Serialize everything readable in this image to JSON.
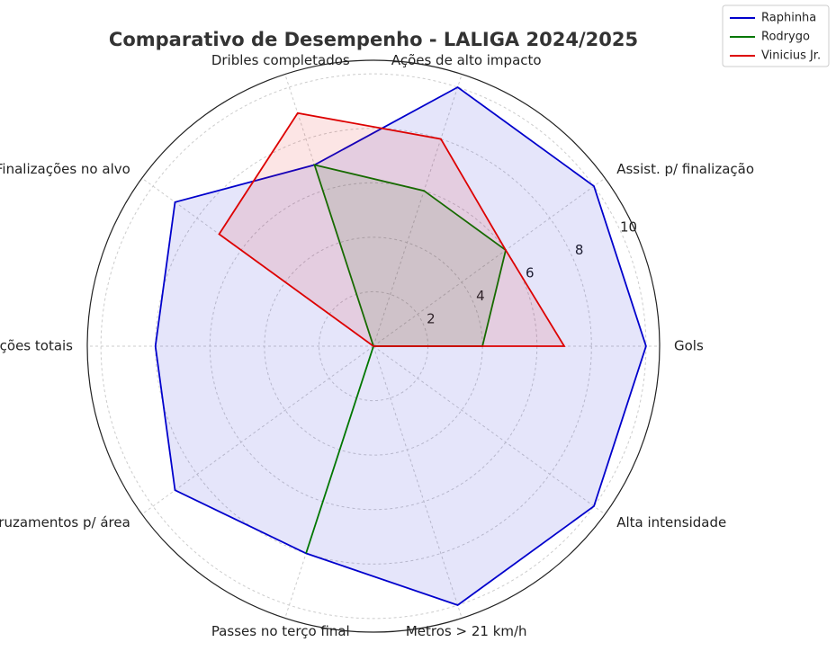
{
  "chart_data": {
    "type": "radar",
    "title": "Comparativo de Desempenho - LALIGA 2024/2025",
    "categories": [
      "Gols",
      "Assist. p/ finalização",
      "Ações de alto impacto",
      "Dribles completados",
      "Finalizações no alvo",
      "Finalizações totais",
      "Cruzamentos p/ área",
      "Passes no terço final",
      "Metros > 21 km/h",
      "Alta intensidade"
    ],
    "series": [
      {
        "name": "Raphinha",
        "color": "#0000cc",
        "values": [
          10,
          10,
          10,
          7,
          9,
          8,
          9,
          8,
          10,
          10
        ]
      },
      {
        "name": "Rodrygo",
        "color": "#007700",
        "values": [
          4,
          6,
          6,
          7,
          0,
          0,
          0,
          8,
          0,
          0
        ]
      },
      {
        "name": "Vinicius Jr.",
        "color": "#dd0000",
        "values": [
          7,
          6,
          8,
          9,
          7,
          0,
          0,
          0,
          0,
          0
        ]
      }
    ],
    "ylim": [
      0,
      10.5
    ],
    "yticks": [
      2,
      4,
      6,
      8,
      10
    ],
    "grid": true,
    "legend": "upper right"
  }
}
